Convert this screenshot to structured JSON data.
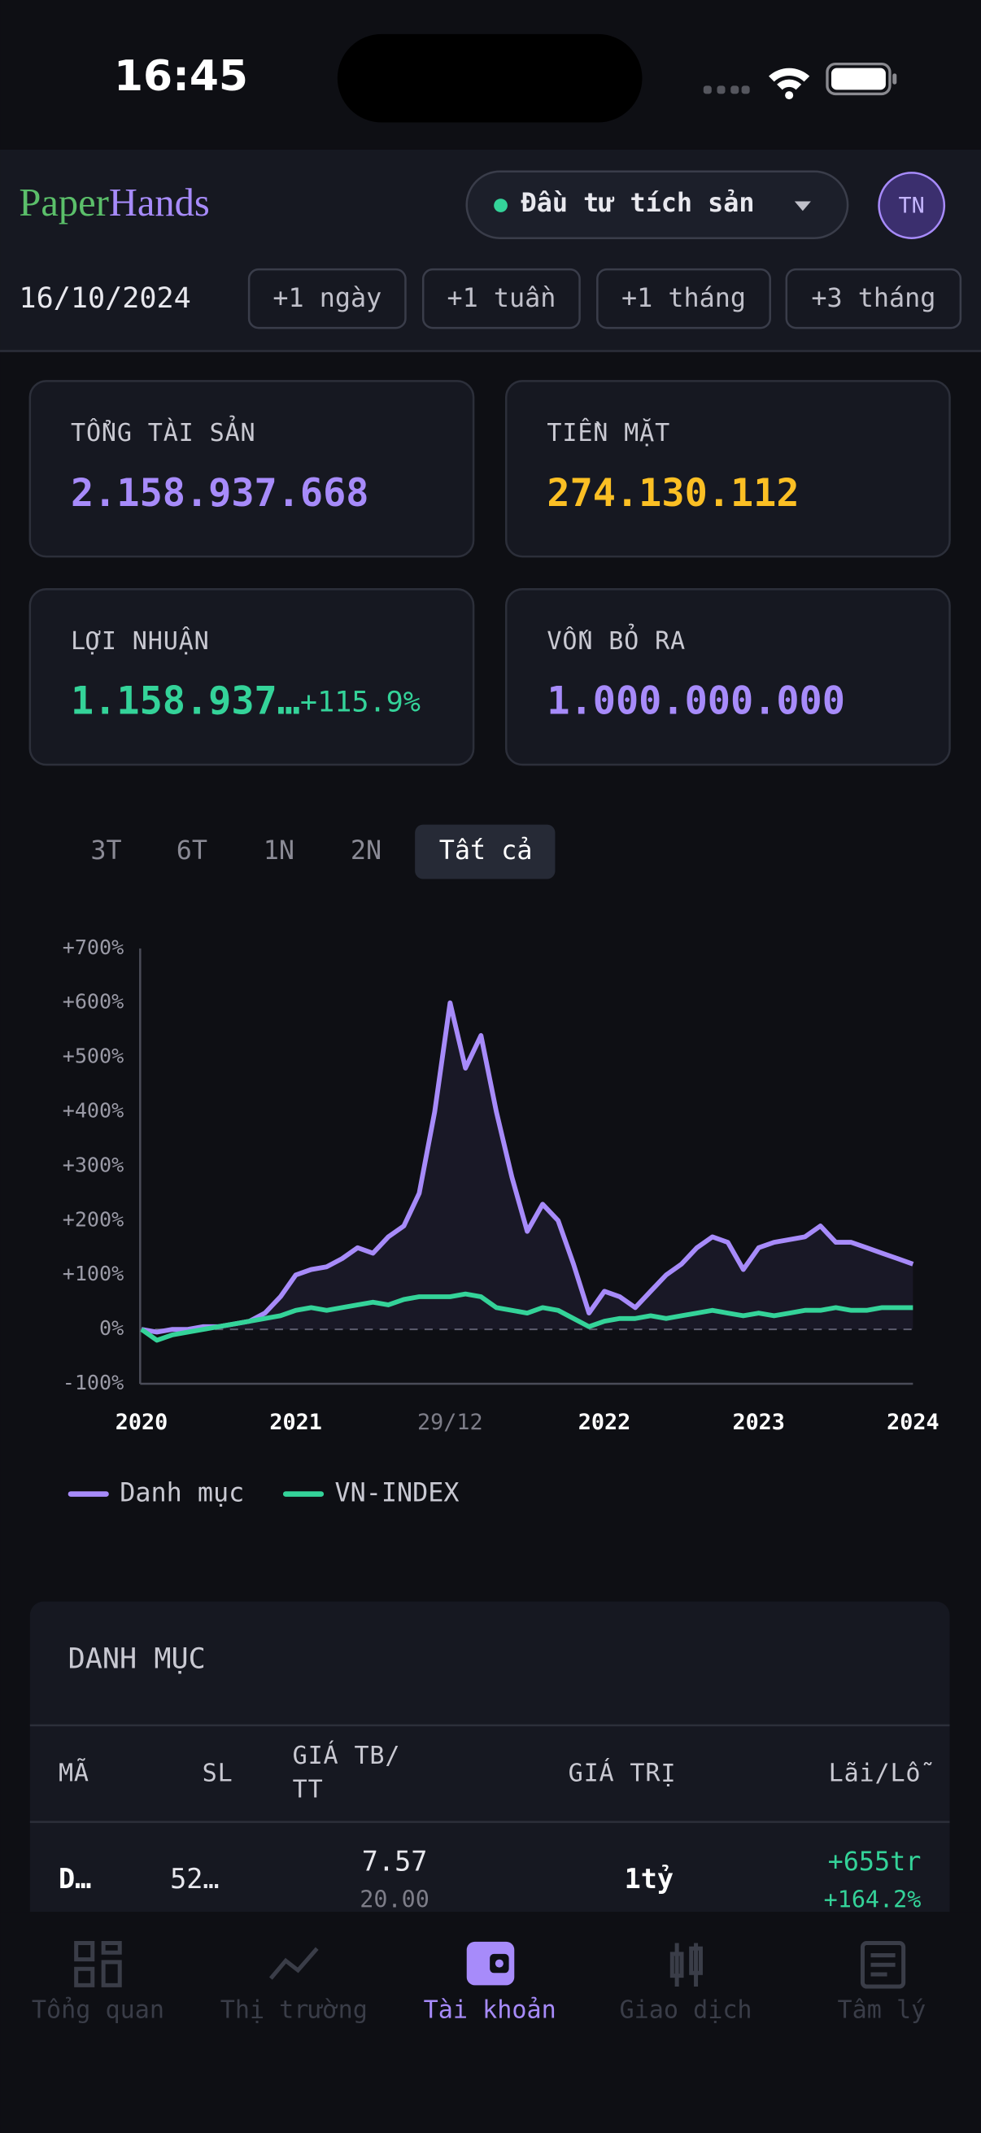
{
  "status_bar": {
    "time": "16:45"
  },
  "header": {
    "brand_first": "Paper",
    "brand_second": "Hands",
    "portfolio": "Đầu tư tích sản",
    "avatar": "TN"
  },
  "date_bar": {
    "date": "16/10/2024",
    "buttons": [
      "+1 ngày",
      "+1 tuần",
      "+1 tháng",
      "+3 tháng"
    ]
  },
  "cards": [
    {
      "label": "TỔNG TÀI SẢN",
      "value": "2.158.937.668"
    },
    {
      "label": "TIỀN MẶT",
      "value": "274.130.112"
    },
    {
      "label": "LỢI NHUẬN",
      "value": "1.158.937…",
      "change": "+115.9%"
    },
    {
      "label": "VỐN BỎ RA",
      "value": "1.000.000.000"
    }
  ],
  "range_tabs": [
    "3T",
    "6T",
    "1N",
    "2N",
    "Tất cả"
  ],
  "chart_data": {
    "type": "line",
    "categories": [
      "2020",
      null,
      null,
      null,
      null,
      null,
      null,
      null,
      null,
      null,
      "2021",
      null,
      null,
      null,
      null,
      null,
      null,
      null,
      null,
      null,
      "29/12",
      null,
      null,
      null,
      null,
      null,
      null,
      null,
      null,
      null,
      "2022",
      null,
      null,
      null,
      null,
      null,
      null,
      null,
      null,
      null,
      "2023",
      null,
      null,
      null,
      null,
      null,
      null,
      null,
      null,
      null,
      "2024"
    ],
    "series": [
      {
        "name": "Danh mục",
        "color": "#a78bfa",
        "values": [
          0,
          -5,
          0,
          0,
          5,
          5,
          10,
          15,
          30,
          60,
          100,
          110,
          115,
          130,
          150,
          140,
          170,
          190,
          250,
          400,
          600,
          480,
          540,
          400,
          280,
          180,
          230,
          200,
          120,
          30,
          70,
          60,
          40,
          70,
          100,
          120,
          150,
          170,
          160,
          110,
          150,
          160,
          165,
          170,
          190,
          160,
          160,
          150,
          140,
          130,
          120
        ]
      },
      {
        "name": "VN-INDEX",
        "color": "#34d399",
        "values": [
          0,
          -20,
          -10,
          -5,
          0,
          5,
          10,
          15,
          20,
          25,
          35,
          40,
          35,
          40,
          45,
          50,
          45,
          55,
          60,
          60,
          60,
          65,
          60,
          40,
          35,
          30,
          40,
          35,
          20,
          5,
          15,
          20,
          20,
          25,
          20,
          25,
          30,
          35,
          30,
          25,
          30,
          25,
          30,
          35,
          35,
          40,
          35,
          35,
          40,
          40,
          40
        ]
      }
    ],
    "ylim": [
      -100,
      700
    ],
    "yticks": [
      {
        "value": -100,
        "label": "-100%"
      },
      {
        "value": 0,
        "label": "0%"
      },
      {
        "value": 100,
        "label": "+100%"
      },
      {
        "value": 200,
        "label": "+200%"
      },
      {
        "value": 300,
        "label": "+300%"
      },
      {
        "value": 400,
        "label": "+400%"
      },
      {
        "value": 500,
        "label": "+500%"
      },
      {
        "value": 600,
        "label": "+600%"
      },
      {
        "value": 700,
        "label": "+700%"
      }
    ],
    "legend": "bottom-left"
  },
  "holdings": {
    "title": "DANH MỤC",
    "columns": [
      "MÃ",
      "SL",
      [
        "GIÁ TB/",
        "TT"
      ],
      "GIÁ TRỊ",
      "Lãi/Lỗ"
    ],
    "rows": [
      [
        "D…",
        "52…",
        [
          "7.57",
          "20.00"
        ],
        "1tỷ",
        [
          "+655tr",
          "+164.2%"
        ]
      ]
    ]
  },
  "nav": [
    "Tổng quan",
    "Thị trường",
    "Tài khoản",
    "Giao dịch",
    "Tâm lý"
  ]
}
